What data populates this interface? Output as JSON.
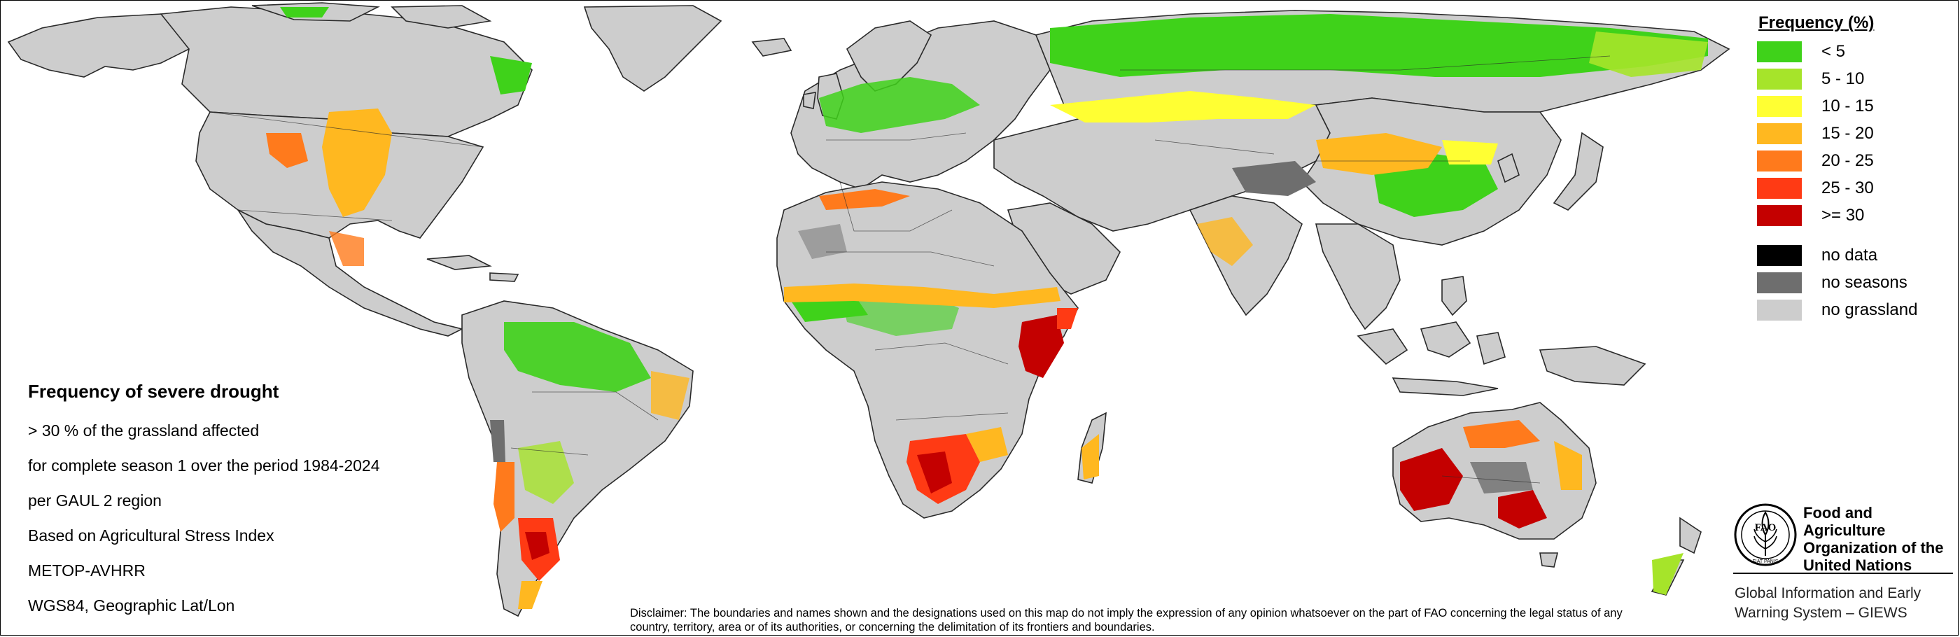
{
  "legend": {
    "title": "Frequency (%)",
    "classes": [
      {
        "label": "< 5",
        "color": "#3fd21a"
      },
      {
        "label": "5 - 10",
        "color": "#a6e42a"
      },
      {
        "label": "10 - 15",
        "color": "#ffff33"
      },
      {
        "label": "15 - 20",
        "color": "#ffb820"
      },
      {
        "label": "20 - 25",
        "color": "#ff7a1c"
      },
      {
        "label": "25 - 30",
        "color": "#ff3a14"
      },
      {
        "label": ">= 30",
        "color": "#c40000"
      }
    ],
    "other": [
      {
        "label": "no data",
        "color": "#000000"
      },
      {
        "label": "no seasons",
        "color": "#6e6e6e"
      },
      {
        "label": "no grassland",
        "color": "#cdcdcd"
      }
    ]
  },
  "info": {
    "title": "Frequency of severe drought",
    "lines": [
      "> 30 % of the grassland affected",
      "for complete season 1 over the period 1984-2024",
      "per GAUL 2 region",
      "Based on Agricultural Stress Index",
      "METOP-AVHRR",
      "WGS84, Geographic Lat/Lon"
    ]
  },
  "disclaimer": "Disclaimer: The boundaries and names shown and the designations used on this map do not imply the expression of any opinion whatsoever on the part of FAO concerning the legal status of any country, territory, area or of its authorities, or concerning the delimitation of its frontiers and boundaries.",
  "fao": {
    "logo_text": "FIAT PANIS",
    "logo_letters": "FAO",
    "name": [
      "Food and Agriculture",
      "Organization of the",
      "United Nations"
    ],
    "giews": [
      "Global Information and Early",
      "Warning System – GIEWS"
    ]
  },
  "colors": {
    "land": "#cdcdcd",
    "boundary": "#2a2a2a",
    "water": "#ffffff"
  }
}
